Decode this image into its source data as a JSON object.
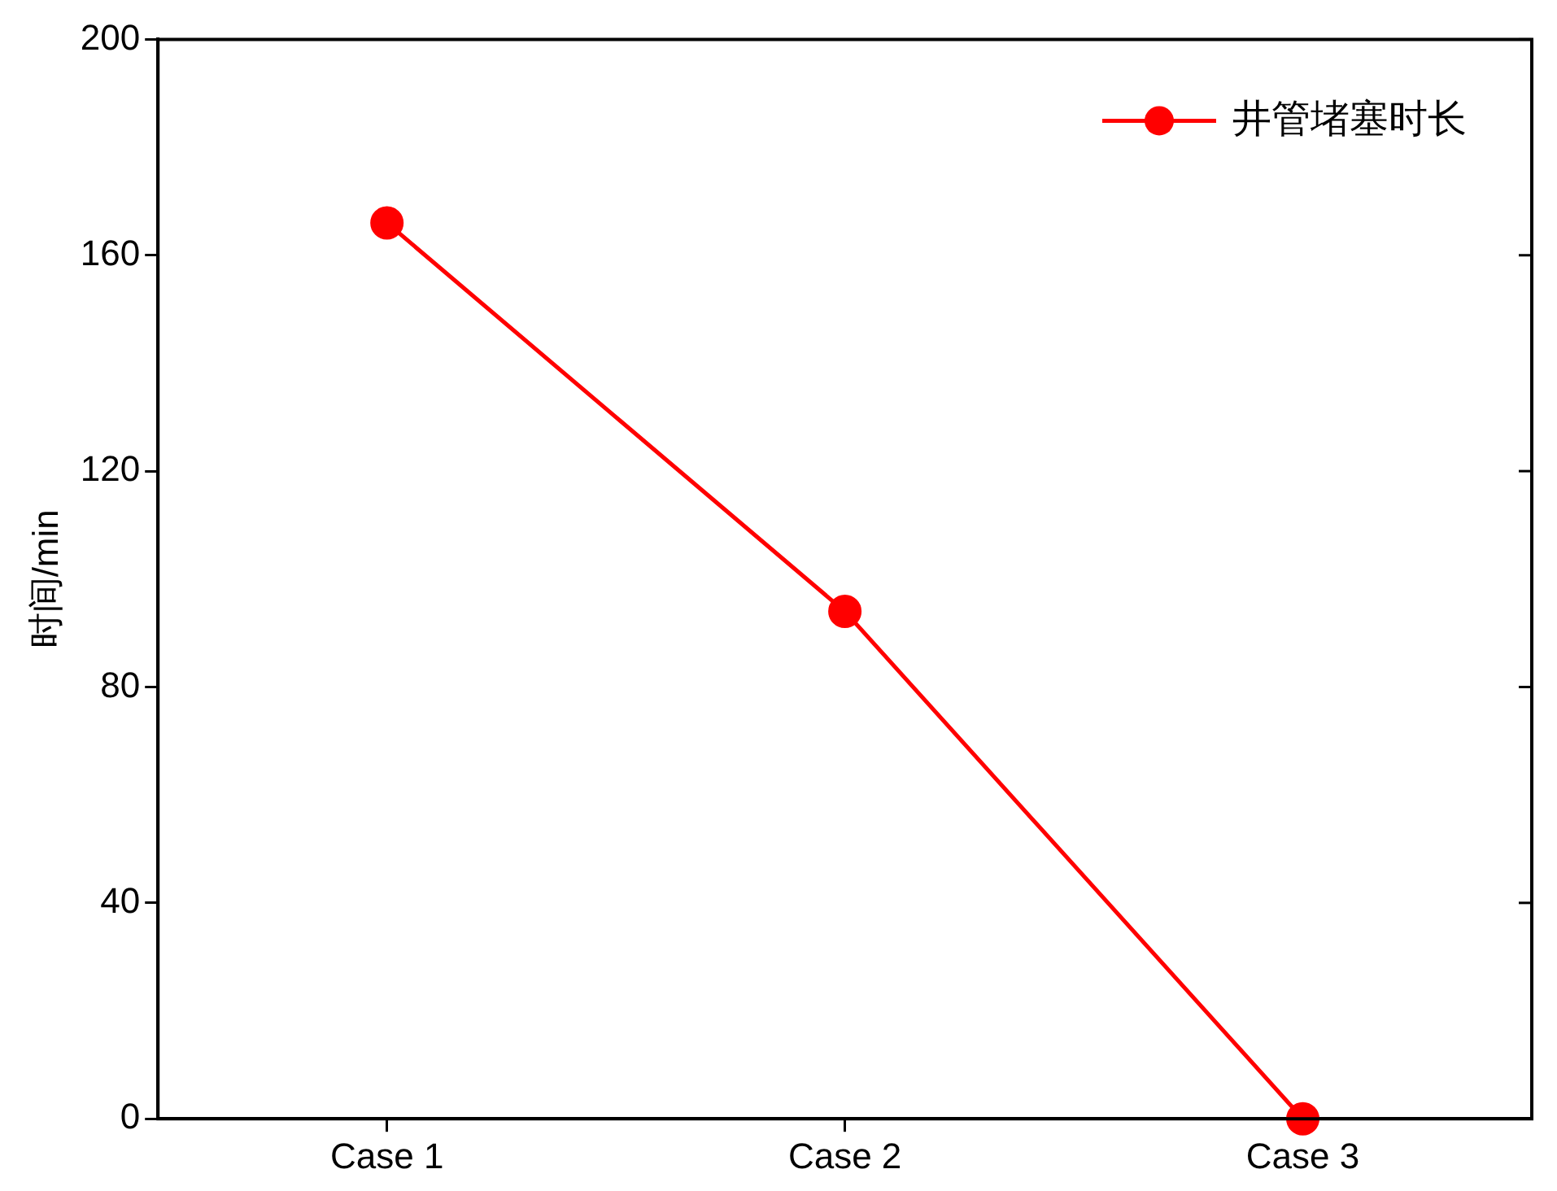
{
  "chart_data": {
    "type": "line",
    "ylabel": "时间/min",
    "categories": [
      "Case 1",
      "Case 2",
      "Case 3"
    ],
    "series": [
      {
        "name": "井管堵塞时长",
        "color": "#ff0000",
        "values": [
          166,
          94,
          0
        ]
      }
    ],
    "ylim": [
      0,
      200
    ],
    "yticks": [
      0,
      40,
      80,
      120,
      160,
      200
    ],
    "grid": false,
    "legend": "top right",
    "marker": "circle",
    "line_style": "solid"
  }
}
